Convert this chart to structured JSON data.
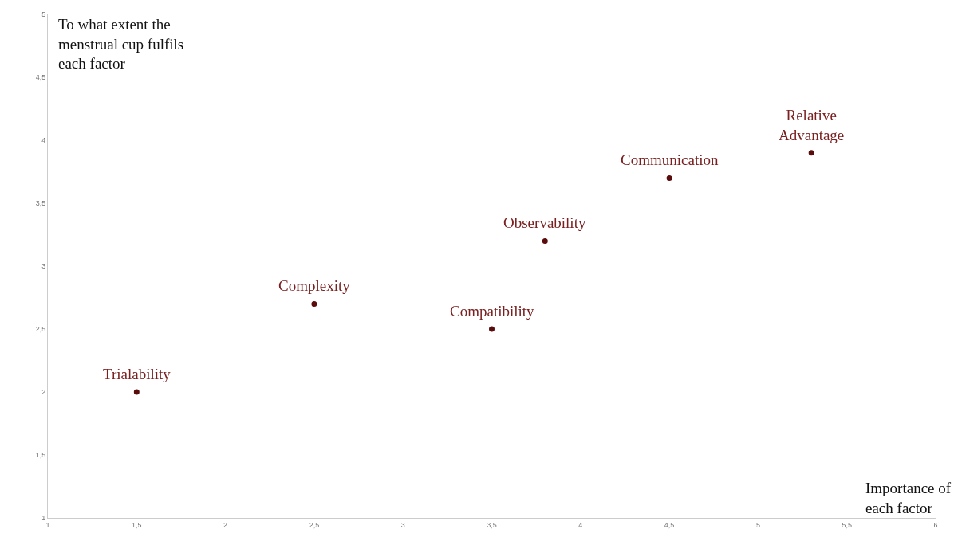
{
  "chart_data": {
    "type": "scatter",
    "xlabel": "Importance of each factor",
    "ylabel": "To what extent the menstrual cup fulfils each factor",
    "x": [
      1.5,
      2.5,
      3.5,
      3.8,
      4.5,
      5.3
    ],
    "series": [
      {
        "color": "#5a0b0b",
        "values": [
          2,
          2.7,
          2.5,
          3.2,
          3.7,
          3.9
        ]
      }
    ],
    "marker": "circle",
    "grid": false,
    "xlim": [
      1,
      6
    ],
    "xticks": [
      1,
      {
        "value": 1.5,
        "label": "1,5"
      },
      2,
      {
        "value": 2.5,
        "label": "2,5"
      },
      3,
      {
        "value": 3.5,
        "label": "3,5"
      },
      4,
      {
        "value": 4.5,
        "label": "4,5"
      },
      5,
      {
        "value": 5.5,
        "label": "5,5"
      },
      6
    ],
    "ylim": [
      1,
      5
    ],
    "yticks": [
      1,
      {
        "value": 1.5,
        "label": "1,5"
      },
      2,
      {
        "value": 2.5,
        "label": "2,5"
      },
      3,
      {
        "value": 3.5,
        "label": "3,5"
      },
      4,
      {
        "value": 4.5,
        "label": "4,5"
      },
      5
    ],
    "annotations": [
      {
        "text": "Trialability",
        "x": 1.5,
        "y": 2
      },
      {
        "text": "Complexity",
        "x": 2.5,
        "y": 2.7
      },
      {
        "text": "Compatibility",
        "x": 3.5,
        "y": 2.5
      },
      {
        "text": "Observability",
        "x": 3.8,
        "y": 3.2
      },
      {
        "text": "Communication",
        "x": 4.5,
        "y": 3.7
      },
      {
        "text": "Relative Advantage",
        "x": 5.3,
        "y": 3.9
      }
    ]
  }
}
